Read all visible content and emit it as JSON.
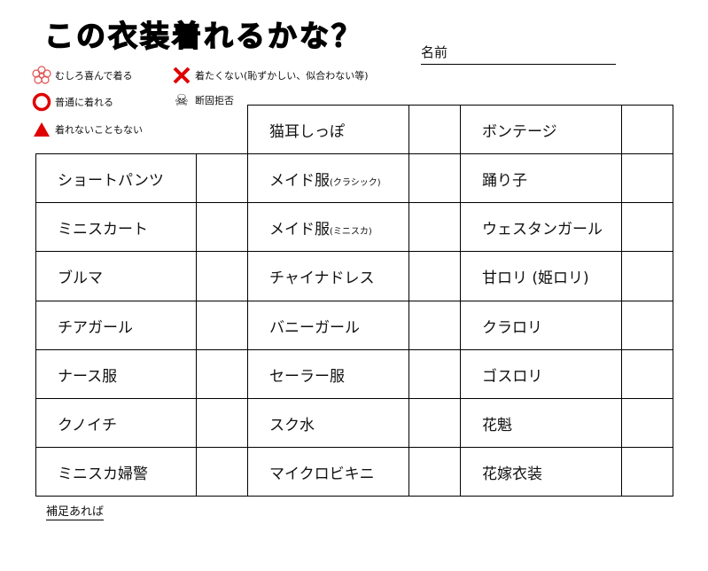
{
  "title": "この衣装着れるかな？",
  "name_label": "名前",
  "legend": [
    {
      "icon": "flower-stamp-icon",
      "label": "むしろ喜んで着る",
      "color": "#e05050"
    },
    {
      "icon": "red-circle-icon",
      "label": "普通に着れる",
      "color": "#e00000"
    },
    {
      "icon": "red-triangle-icon",
      "label": "着れないこともない",
      "color": "#e00000"
    },
    {
      "icon": "red-cross-icon",
      "label": "着たくない(恥ずかしい、似合わない等)",
      "color": "#e00000"
    },
    {
      "icon": "skull-crossbones-icon",
      "label": "断固拒否"
    }
  ],
  "columns": [
    [
      "ショートパンツ",
      "ミニスカート",
      "ブルマ",
      "チアガール",
      "ナース服",
      "クノイチ",
      "ミニスカ婦警"
    ],
    [
      {
        "main": "猫耳しっぽ",
        "sub": ""
      },
      {
        "main": "メイド服",
        "sub": "(クラシック)"
      },
      {
        "main": "メイド服",
        "sub": "(ミニスカ)"
      },
      {
        "main": "チャイナドレス",
        "sub": ""
      },
      {
        "main": "バニーガール",
        "sub": ""
      },
      {
        "main": "セーラー服",
        "sub": ""
      },
      {
        "main": "スク水",
        "sub": ""
      },
      {
        "main": "マイクロビキニ",
        "sub": ""
      }
    ],
    [
      "ボンテージ",
      "踊り子",
      "ウェスタンガール",
      "甘ロリ (姫ロリ)",
      "クラロリ",
      "ゴスロリ",
      "花魁",
      "花嫁衣装"
    ]
  ],
  "note_label": "補足あれば"
}
